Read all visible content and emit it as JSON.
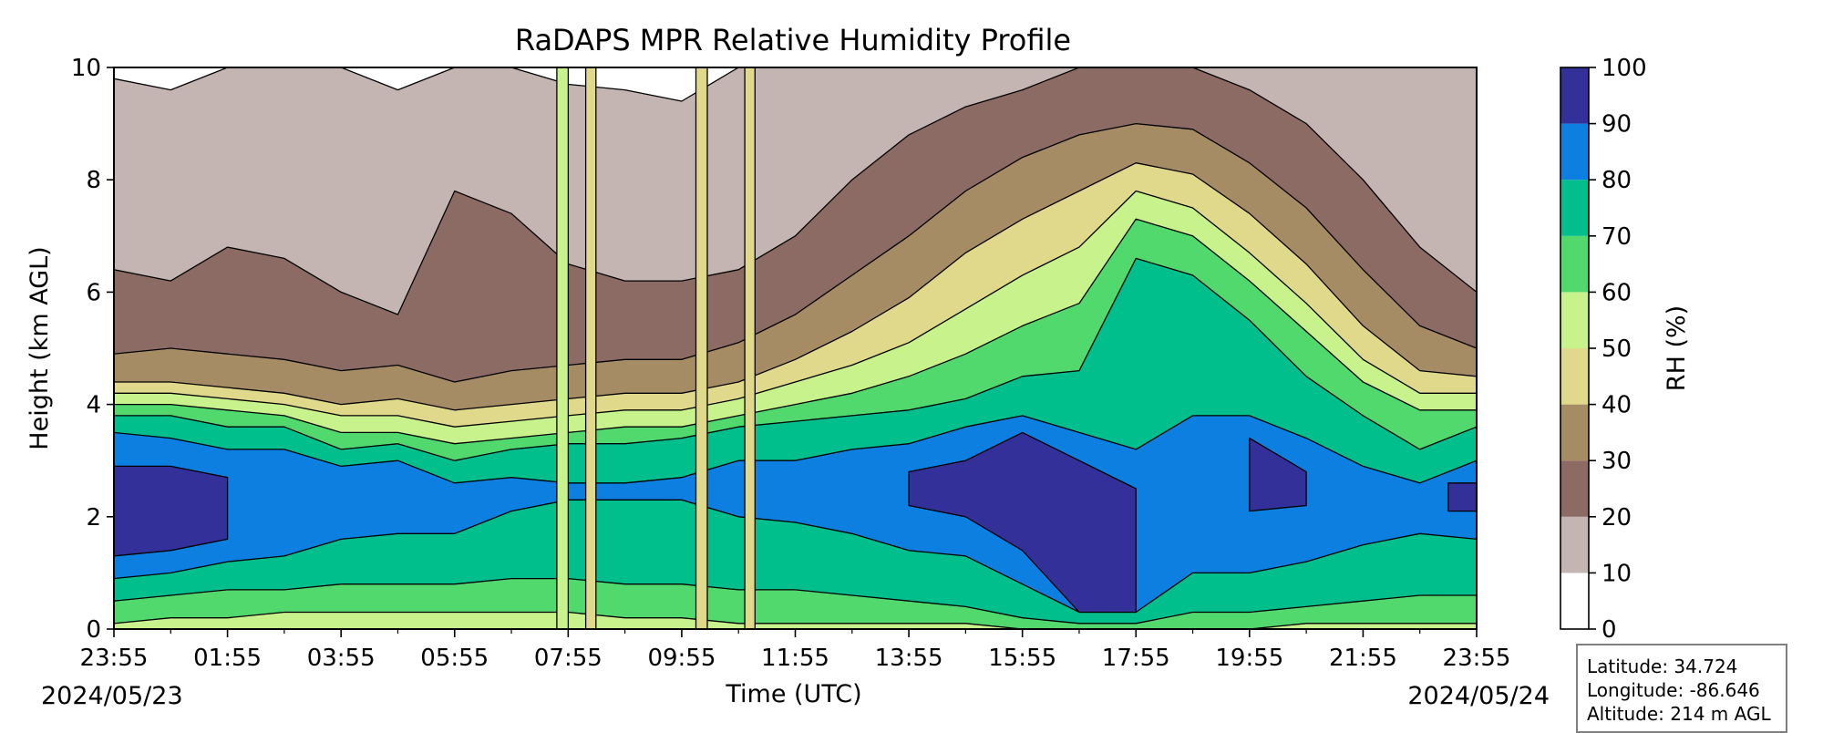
{
  "chart_data": {
    "type": "heatmap",
    "title": "RaDAPS MPR Relative Humidity Profile",
    "xlabel": "Time (UTC)",
    "ylabel": "Height (km AGL)",
    "x_tick_labels": [
      "23:55",
      "01:55",
      "03:55",
      "05:55",
      "07:55",
      "09:55",
      "11:55",
      "13:55",
      "15:55",
      "17:55",
      "19:55",
      "21:55",
      "23:55"
    ],
    "x_ticks_hours": [
      0,
      2,
      4,
      6,
      8,
      10,
      12,
      14,
      16,
      18,
      20,
      22,
      24
    ],
    "xlim_hours": [
      0,
      24
    ],
    "start_date": "2024/05/23",
    "end_date": "2024/05/24",
    "y_ticks": [
      0,
      2,
      4,
      6,
      8,
      10
    ],
    "ylim": [
      0,
      10
    ],
    "colorbar": {
      "label": "RH (%)",
      "ticks": [
        0,
        10,
        20,
        30,
        40,
        50,
        60,
        70,
        80,
        90,
        100
      ],
      "levels": [
        0,
        10,
        20,
        30,
        40,
        50,
        60,
        70,
        80,
        90,
        100
      ],
      "colors": [
        "#ffffff",
        "#c4b5b3",
        "#8c6b64",
        "#a68c64",
        "#e0d98b",
        "#c8f28c",
        "#52d96e",
        "#00bf8c",
        "#0d7fe0",
        "#33309a"
      ]
    },
    "contour_level_heights_km": {
      "times_hours": [
        0,
        1,
        2,
        3,
        4,
        5,
        6,
        7,
        8,
        9,
        10,
        11,
        12,
        13,
        14,
        15,
        16,
        17,
        18,
        19,
        20,
        21,
        22,
        23,
        24
      ],
      "level_90": [
        [
          1.3,
          2.9
        ],
        [
          1.4,
          2.9
        ],
        [
          1.6,
          2.7
        ],
        [
          null,
          null
        ],
        [
          null,
          null
        ],
        [
          null,
          null
        ],
        [
          null,
          null
        ],
        [
          null,
          null
        ],
        [
          null,
          null
        ],
        [
          null,
          null
        ],
        [
          null,
          null
        ],
        [
          null,
          null
        ],
        [
          null,
          null
        ],
        [
          null,
          null
        ],
        [
          2.2,
          2.8
        ],
        [
          2.0,
          3.0
        ],
        [
          1.4,
          3.5
        ],
        [
          0.3,
          3.0
        ],
        [
          0.3,
          2.5
        ],
        [
          null,
          null
        ],
        [
          2.1,
          3.4
        ],
        [
          2.2,
          2.8
        ],
        [
          null,
          null
        ],
        [
          null,
          null
        ],
        [
          2.1,
          2.6
        ]
      ],
      "level_80": [
        [
          0.9,
          3.5
        ],
        [
          1.0,
          3.4
        ],
        [
          1.2,
          3.2
        ],
        [
          1.3,
          3.2
        ],
        [
          1.6,
          2.9
        ],
        [
          1.7,
          3.0
        ],
        [
          1.7,
          2.6
        ],
        [
          2.1,
          2.7
        ],
        [
          2.3,
          2.6
        ],
        [
          2.3,
          2.6
        ],
        [
          2.3,
          2.7
        ],
        [
          2.0,
          3.0
        ],
        [
          1.9,
          3.0
        ],
        [
          1.7,
          3.2
        ],
        [
          1.4,
          3.3
        ],
        [
          1.3,
          3.6
        ],
        [
          0.8,
          3.8
        ],
        [
          0.3,
          3.5
        ],
        [
          0.3,
          3.2
        ],
        [
          1.0,
          3.8
        ],
        [
          1.0,
          3.8
        ],
        [
          1.2,
          3.4
        ],
        [
          1.5,
          2.9
        ],
        [
          1.7,
          2.6
        ],
        [
          1.6,
          3.0
        ]
      ],
      "level_70": [
        [
          0.5,
          3.8
        ],
        [
          0.6,
          3.8
        ],
        [
          0.7,
          3.6
        ],
        [
          0.7,
          3.6
        ],
        [
          0.8,
          3.2
        ],
        [
          0.8,
          3.3
        ],
        [
          0.8,
          3.0
        ],
        [
          0.9,
          3.2
        ],
        [
          0.9,
          3.3
        ],
        [
          0.8,
          3.3
        ],
        [
          0.8,
          3.4
        ],
        [
          0.7,
          3.6
        ],
        [
          0.7,
          3.7
        ],
        [
          0.6,
          3.8
        ],
        [
          0.5,
          3.9
        ],
        [
          0.4,
          4.1
        ],
        [
          0.2,
          4.5
        ],
        [
          0.1,
          4.6
        ],
        [
          0.1,
          6.6
        ],
        [
          0.3,
          6.3
        ],
        [
          0.3,
          5.5
        ],
        [
          0.4,
          4.5
        ],
        [
          0.5,
          3.8
        ],
        [
          0.6,
          3.2
        ],
        [
          0.6,
          3.6
        ]
      ],
      "level_60": [
        [
          0.1,
          4.0
        ],
        [
          0.2,
          4.0
        ],
        [
          0.2,
          3.9
        ],
        [
          0.3,
          3.8
        ],
        [
          0.3,
          3.5
        ],
        [
          0.3,
          3.5
        ],
        [
          0.3,
          3.3
        ],
        [
          0.3,
          3.4
        ],
        [
          0.3,
          3.5
        ],
        [
          0.2,
          3.6
        ],
        [
          0.2,
          3.6
        ],
        [
          0.1,
          3.8
        ],
        [
          0.1,
          4.0
        ],
        [
          0.1,
          4.2
        ],
        [
          0.1,
          4.5
        ],
        [
          0.1,
          4.9
        ],
        [
          0.0,
          5.4
        ],
        [
          0.0,
          5.8
        ],
        [
          0.0,
          7.3
        ],
        [
          0.0,
          7.0
        ],
        [
          0.0,
          6.2
        ],
        [
          0.1,
          5.3
        ],
        [
          0.1,
          4.4
        ],
        [
          0.1,
          3.9
        ],
        [
          0.1,
          3.9
        ]
      ],
      "level_50": [
        [
          0.0,
          4.2
        ],
        [
          0.0,
          4.2
        ],
        [
          0.0,
          4.1
        ],
        [
          0.0,
          4.0
        ],
        [
          0.0,
          3.8
        ],
        [
          0.0,
          3.8
        ],
        [
          0.0,
          3.6
        ],
        [
          0.0,
          3.7
        ],
        [
          0.0,
          3.8
        ],
        [
          0.0,
          3.9
        ],
        [
          0.0,
          3.9
        ],
        [
          0.0,
          4.1
        ],
        [
          0.0,
          4.4
        ],
        [
          0.0,
          4.7
        ],
        [
          0.0,
          5.1
        ],
        [
          0.0,
          5.7
        ],
        [
          0.0,
          6.3
        ],
        [
          0.0,
          6.8
        ],
        [
          0.0,
          7.8
        ],
        [
          0.0,
          7.5
        ],
        [
          0.0,
          6.7
        ],
        [
          0.0,
          5.8
        ],
        [
          0.0,
          4.8
        ],
        [
          0.0,
          4.2
        ],
        [
          0.0,
          4.2
        ]
      ],
      "level_40": [
        [
          0.0,
          4.4
        ],
        [
          0.0,
          4.4
        ],
        [
          0.0,
          4.3
        ],
        [
          0.0,
          4.2
        ],
        [
          0.0,
          4.0
        ],
        [
          0.0,
          4.1
        ],
        [
          0.0,
          3.9
        ],
        [
          0.0,
          4.0
        ],
        [
          0.0,
          4.1
        ],
        [
          0.0,
          4.2
        ],
        [
          0.0,
          4.2
        ],
        [
          0.0,
          4.4
        ],
        [
          0.0,
          4.8
        ],
        [
          0.0,
          5.3
        ],
        [
          0.0,
          5.9
        ],
        [
          0.0,
          6.7
        ],
        [
          0.0,
          7.3
        ],
        [
          0.0,
          7.8
        ],
        [
          0.0,
          8.3
        ],
        [
          0.0,
          8.1
        ],
        [
          0.0,
          7.4
        ],
        [
          0.0,
          6.5
        ],
        [
          0.0,
          5.4
        ],
        [
          0.0,
          4.6
        ],
        [
          0.0,
          4.5
        ]
      ],
      "level_30": [
        [
          0.0,
          4.9
        ],
        [
          0.0,
          5.0
        ],
        [
          0.0,
          4.9
        ],
        [
          0.0,
          4.8
        ],
        [
          0.0,
          4.6
        ],
        [
          0.0,
          4.7
        ],
        [
          0.0,
          4.4
        ],
        [
          0.0,
          4.6
        ],
        [
          0.0,
          4.7
        ],
        [
          0.0,
          4.8
        ],
        [
          0.0,
          4.8
        ],
        [
          0.0,
          5.1
        ],
        [
          0.0,
          5.6
        ],
        [
          0.0,
          6.3
        ],
        [
          0.0,
          7.0
        ],
        [
          0.0,
          7.8
        ],
        [
          0.0,
          8.4
        ],
        [
          0.0,
          8.8
        ],
        [
          0.0,
          9.0
        ],
        [
          0.0,
          8.9
        ],
        [
          0.0,
          8.3
        ],
        [
          0.0,
          7.5
        ],
        [
          0.0,
          6.4
        ],
        [
          0.0,
          5.4
        ],
        [
          0.0,
          5.0
        ]
      ],
      "level_20": [
        [
          0.0,
          6.4
        ],
        [
          0.0,
          6.2
        ],
        [
          0.0,
          6.8
        ],
        [
          0.0,
          6.6
        ],
        [
          0.0,
          6.0
        ],
        [
          0.0,
          5.6
        ],
        [
          0.0,
          7.8
        ],
        [
          0.0,
          7.4
        ],
        [
          0.0,
          6.5
        ],
        [
          0.0,
          6.2
        ],
        [
          0.0,
          6.2
        ],
        [
          0.0,
          6.4
        ],
        [
          0.0,
          7.0
        ],
        [
          0.0,
          8.0
        ],
        [
          0.0,
          8.8
        ],
        [
          0.0,
          9.3
        ],
        [
          0.0,
          9.6
        ],
        [
          0.0,
          10.0
        ],
        [
          0.0,
          10.0
        ],
        [
          0.0,
          10.0
        ],
        [
          0.0,
          9.6
        ],
        [
          0.0,
          9.0
        ],
        [
          0.0,
          8.0
        ],
        [
          0.0,
          6.8
        ],
        [
          0.0,
          6.0
        ]
      ],
      "level_10": [
        [
          0.0,
          9.8
        ],
        [
          0.0,
          9.6
        ],
        [
          0.0,
          10.0
        ],
        [
          0.0,
          10.0
        ],
        [
          0.0,
          10.0
        ],
        [
          0.0,
          9.6
        ],
        [
          0.0,
          10.0
        ],
        [
          0.0,
          10.0
        ],
        [
          0.0,
          9.7
        ],
        [
          0.0,
          9.6
        ],
        [
          0.0,
          9.4
        ],
        [
          0.0,
          10.0
        ],
        [
          0.0,
          10.0
        ],
        [
          0.0,
          10.0
        ],
        [
          0.0,
          10.0
        ],
        [
          0.0,
          10.0
        ],
        [
          0.0,
          10.0
        ],
        [
          0.0,
          10.0
        ],
        [
          0.0,
          10.0
        ],
        [
          0.0,
          10.0
        ],
        [
          0.0,
          10.0
        ],
        [
          0.0,
          10.0
        ],
        [
          0.0,
          10.0
        ],
        [
          0.0,
          10.0
        ],
        [
          0.0,
          10.0
        ]
      ]
    },
    "spikes": [
      {
        "t_hours": 7.9,
        "width_hours": 0.2,
        "rh_band": 50
      },
      {
        "t_hours": 8.4,
        "width_hours": 0.18,
        "rh_band": 40
      },
      {
        "t_hours": 10.35,
        "width_hours": 0.2,
        "rh_band": 40
      },
      {
        "t_hours": 11.2,
        "width_hours": 0.18,
        "rh_band": 40
      }
    ]
  },
  "station": {
    "latitude": "Latitude: 34.724",
    "longitude": "Longitude: -86.646",
    "altitude": "Altitude: 214 m AGL"
  }
}
